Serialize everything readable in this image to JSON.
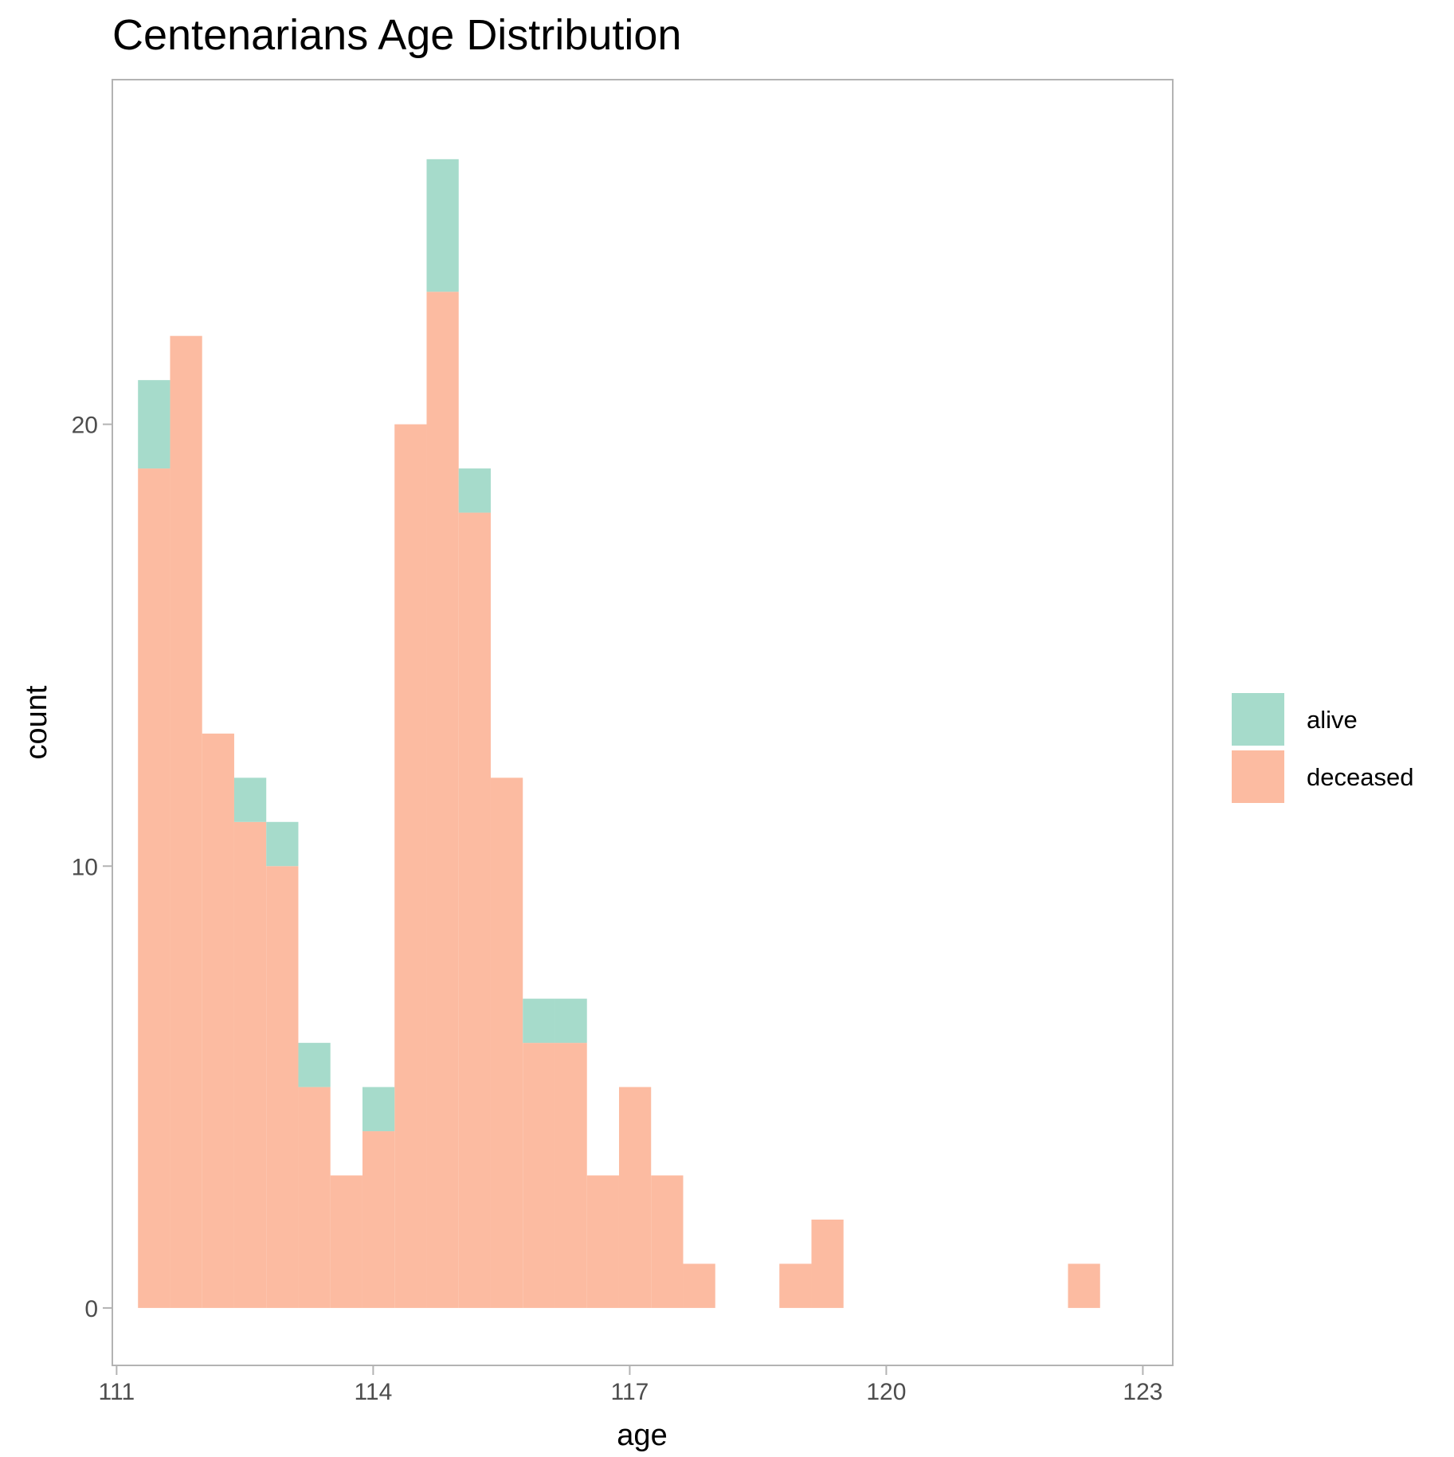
{
  "chart_data": {
    "type": "bar",
    "title": "Centenarians Age Distribution",
    "xlabel": "age",
    "ylabel": "count",
    "xlim": [
      110.95,
      123.35
    ],
    "ylim": [
      -1.3,
      27.8
    ],
    "x_ticks": [
      111,
      114,
      117,
      120,
      123
    ],
    "y_ticks": [
      0,
      10,
      20
    ],
    "grid": false,
    "legend_position": "right",
    "stacked": true,
    "bin_width": 0.375,
    "bin_starts": [
      111.25,
      111.625,
      112.0,
      112.375,
      112.75,
      113.125,
      113.5,
      113.875,
      114.25,
      114.625,
      115.0,
      115.375,
      115.75,
      116.125,
      116.5,
      116.875,
      117.25,
      117.625,
      118.0,
      118.375,
      118.75,
      119.125,
      119.5,
      119.875,
      120.25,
      120.625,
      121.0,
      121.375,
      121.75,
      122.125
    ],
    "series": [
      {
        "name": "deceased",
        "color": "#fcbba1",
        "values": [
          19,
          22,
          13,
          11,
          10,
          5,
          3,
          4,
          20,
          23,
          18,
          12,
          6,
          6,
          3,
          5,
          3,
          1,
          0,
          0,
          1,
          2,
          0,
          0,
          0,
          0,
          0,
          0,
          0,
          1
        ]
      },
      {
        "name": "alive",
        "color": "#a6dbcb",
        "values": [
          2,
          0,
          0,
          1,
          1,
          1,
          0,
          1,
          0,
          3,
          1,
          0,
          1,
          1,
          0,
          0,
          0,
          0,
          0,
          0,
          0,
          0,
          0,
          0,
          0,
          0,
          0,
          0,
          0,
          0
        ]
      }
    ],
    "legend": [
      {
        "label": "alive",
        "color": "#a6dbcb"
      },
      {
        "label": "deceased",
        "color": "#fcbba1"
      }
    ]
  }
}
